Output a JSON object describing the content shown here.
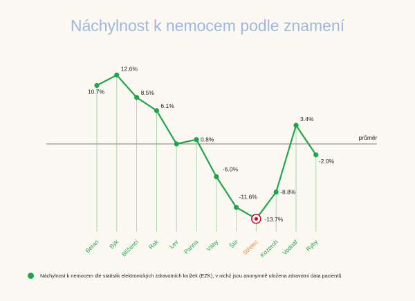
{
  "chart_data": {
    "type": "line",
    "title": "Náchylnost k nemocem podle znamení",
    "categories": [
      "Beran",
      "Býk",
      "Blíženci",
      "Rak",
      "Lev",
      "Panna",
      "Váhy",
      "Štír",
      "Střelec",
      "Kozoroh",
      "Vodnář",
      "Ryby"
    ],
    "series": [
      {
        "name": "Náchylnost k nemocem dle statistik elektronických zdravotních knížek (EZK), v nichž jsou anonymně uložena zdravotní data pacientů",
        "values": [
          10.7,
          12.6,
          8.5,
          6.1,
          0,
          0.8,
          -6.0,
          -11.6,
          -13.7,
          -8.8,
          3.4,
          -2.0
        ],
        "labels": [
          "10.7%",
          "12.6%",
          "8.5%",
          "6.1%",
          "",
          "0.8%",
          "-6.0%",
          "-11.6%",
          "-13.7%",
          "-8.8%",
          "3.4%",
          "-2.0%"
        ]
      }
    ],
    "highlight_category": "Střelec",
    "reference_line": {
      "label": "průměr",
      "value": 0
    },
    "ylim": [
      -14,
      14
    ],
    "colors": {
      "line": "#1fa64a",
      "highlight_label": "#f08a3a",
      "highlight_marker": "#c8102e",
      "title": "#9db7e0"
    }
  }
}
